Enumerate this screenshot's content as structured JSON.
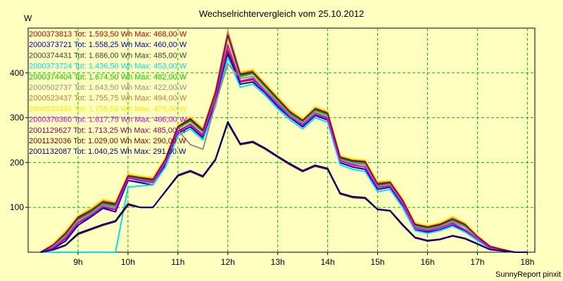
{
  "chart_data": {
    "type": "line",
    "title": "Wechselrichtervergleich vom 25.10.2012",
    "ylabel": "W",
    "footer": "SunnyReport pinxit",
    "ylim": [
      0,
      500
    ],
    "xlim": [
      8.0,
      18.15
    ],
    "x_ticks": [
      {
        "value": 9,
        "label": "9h"
      },
      {
        "value": 10,
        "label": "10h"
      },
      {
        "value": 11,
        "label": "11h"
      },
      {
        "value": 12,
        "label": "12h"
      },
      {
        "value": 13,
        "label": "13h"
      },
      {
        "value": 14,
        "label": "14h"
      },
      {
        "value": 15,
        "label": "15h"
      },
      {
        "value": 16,
        "label": "16h"
      },
      {
        "value": 17,
        "label": "17h"
      },
      {
        "value": 18,
        "label": "18h"
      }
    ],
    "y_ticks": [
      {
        "value": 100,
        "label": "100"
      },
      {
        "value": 200,
        "label": "200"
      },
      {
        "value": 300,
        "label": "300"
      },
      {
        "value": 400,
        "label": "400"
      }
    ],
    "grid": true,
    "legend_position": "top-left",
    "x": [
      8.25,
      8.5,
      8.75,
      9.0,
      9.25,
      9.5,
      9.75,
      10.0,
      10.25,
      10.5,
      10.75,
      11.0,
      11.25,
      11.5,
      11.75,
      12.0,
      12.25,
      12.5,
      12.75,
      13.0,
      13.25,
      13.5,
      13.75,
      14.0,
      14.25,
      14.5,
      14.75,
      15.0,
      15.25,
      15.5,
      15.75,
      16.0,
      16.25,
      16.5,
      16.75,
      17.0,
      17.25,
      17.5,
      17.75,
      18.0
    ],
    "series": [
      {
        "name": "2000373813 Tot: 1.593,50 Wh Max: 468,00 W",
        "color": "#c00000",
        "values": [
          0,
          10,
          30,
          65,
          80,
          100,
          95,
          165,
          160,
          155,
          200,
          270,
          285,
          260,
          340,
          450,
          380,
          385,
          360,
          330,
          305,
          285,
          310,
          300,
          205,
          195,
          190,
          145,
          150,
          110,
          55,
          50,
          55,
          65,
          50,
          30,
          10,
          5,
          0,
          0
        ]
      },
      {
        "name": "2000373721 Tot: 1.558,25 Wh Max: 460,00 W",
        "color": "#0000c0",
        "values": [
          0,
          8,
          25,
          60,
          78,
          98,
          90,
          160,
          155,
          150,
          195,
          265,
          280,
          255,
          330,
          442,
          375,
          380,
          355,
          325,
          300,
          280,
          305,
          295,
          200,
          190,
          185,
          140,
          145,
          105,
          50,
          45,
          50,
          60,
          48,
          28,
          8,
          4,
          0,
          0
        ]
      },
      {
        "name": "2000374431 Tot: 1.686,00 Wh Max: 485,00 W",
        "color": "#404040",
        "values": [
          0,
          15,
          40,
          75,
          90,
          110,
          105,
          170,
          165,
          160,
          205,
          278,
          295,
          270,
          355,
          482,
          395,
          400,
          370,
          340,
          310,
          292,
          318,
          308,
          210,
          202,
          200,
          150,
          155,
          115,
          60,
          55,
          60,
          72,
          60,
          34,
          12,
          6,
          0,
          0
        ]
      },
      {
        "name": "2000373724 Tot: 1.436,50 Wh Max: 453,00 W",
        "color": "#00e0f0",
        "values": [
          0,
          0,
          0,
          0,
          0,
          0,
          0,
          145,
          148,
          150,
          190,
          260,
          275,
          250,
          325,
          435,
          368,
          375,
          350,
          320,
          295,
          275,
          300,
          290,
          195,
          185,
          180,
          135,
          140,
          100,
          48,
          42,
          48,
          58,
          45,
          26,
          8,
          4,
          0,
          0
        ]
      },
      {
        "name": "2000374404 Tot: 1.674,50 Wh Max: 482,00 W",
        "color": "#00d000",
        "values": [
          0,
          14,
          38,
          72,
          88,
          108,
          102,
          168,
          162,
          158,
          203,
          276,
          292,
          268,
          350,
          478,
          392,
          398,
          368,
          338,
          308,
          290,
          316,
          306,
          208,
          200,
          198,
          148,
          152,
          112,
          58,
          52,
          58,
          70,
          58,
          32,
          11,
          5,
          0,
          0
        ]
      },
      {
        "name": "2000502737 Tot: 1.643,50 Wh Max: 422,00 W",
        "color": "#909090",
        "values": [
          0,
          12,
          35,
          70,
          85,
          105,
          100,
          165,
          158,
          155,
          200,
          272,
          240,
          230,
          330,
          420,
          388,
          392,
          362,
          334,
          304,
          288,
          312,
          302,
          205,
          198,
          195,
          146,
          150,
          110,
          56,
          50,
          56,
          68,
          56,
          31,
          10,
          5,
          0,
          0
        ]
      },
      {
        "name": "2000523437 Tot: 1.755,75 Wh Max: 494,00 W",
        "color": "#c08040",
        "values": [
          0,
          18,
          45,
          80,
          95,
          115,
          110,
          172,
          168,
          165,
          210,
          282,
          300,
          275,
          360,
          492,
          400,
          405,
          375,
          345,
          315,
          296,
          322,
          312,
          214,
          206,
          204,
          155,
          158,
          118,
          64,
          58,
          64,
          78,
          64,
          36,
          14,
          7,
          0,
          0
        ]
      },
      {
        "name": "2000523436 Tot: 1.755,50 Wh Max: 479,00 W",
        "color": "#f0f000",
        "values": [
          0,
          20,
          48,
          82,
          98,
          118,
          112,
          175,
          170,
          167,
          212,
          284,
          302,
          278,
          362,
          478,
          402,
          408,
          378,
          348,
          318,
          298,
          325,
          315,
          216,
          208,
          206,
          158,
          160,
          120,
          66,
          60,
          66,
          80,
          66,
          38,
          15,
          7,
          0,
          0
        ]
      },
      {
        "name": "2000376360 Tot: 1.617,75 Wh Max: 466,00 W",
        "color": "#e000e0",
        "values": [
          0,
          10,
          32,
          66,
          82,
          102,
          96,
          166,
          160,
          156,
          200,
          270,
          286,
          262,
          342,
          462,
          382,
          388,
          358,
          330,
          302,
          284,
          308,
          298,
          204,
          194,
          190,
          144,
          148,
          108,
          54,
          48,
          54,
          64,
          50,
          30,
          10,
          5,
          0,
          0
        ]
      },
      {
        "name": "2001129627 Tot: 1.713,25 Wh Max: 485,00 W",
        "color": "#900060",
        "values": [
          0,
          16,
          42,
          78,
          92,
          112,
          108,
          170,
          166,
          162,
          207,
          280,
          298,
          272,
          356,
          484,
          397,
          402,
          372,
          342,
          312,
          294,
          320,
          310,
          212,
          204,
          202,
          152,
          156,
          116,
          62,
          56,
          62,
          74,
          62,
          35,
          13,
          6,
          0,
          0
        ]
      },
      {
        "name": "2001132036 Tot: 1.029,00 Wh Max: 290,00 W",
        "color": "#800000",
        "values": [
          0,
          5,
          15,
          40,
          50,
          60,
          68,
          105,
          100,
          100,
          135,
          170,
          180,
          168,
          205,
          288,
          240,
          245,
          230,
          212,
          195,
          180,
          192,
          185,
          130,
          122,
          120,
          95,
          92,
          60,
          32,
          25,
          28,
          36,
          30,
          18,
          6,
          3,
          0,
          0
        ]
      },
      {
        "name": "2001132087 Tot: 1.040,25 Wh Max: 291,00 W",
        "color": "#000080",
        "values": [
          0,
          6,
          16,
          42,
          52,
          62,
          70,
          108,
          100,
          100,
          136,
          172,
          182,
          170,
          207,
          291,
          242,
          247,
          232,
          214,
          197,
          182,
          194,
          187,
          132,
          124,
          122,
          96,
          93,
          62,
          33,
          26,
          29,
          37,
          31,
          19,
          6,
          3,
          0,
          0
        ]
      }
    ]
  }
}
